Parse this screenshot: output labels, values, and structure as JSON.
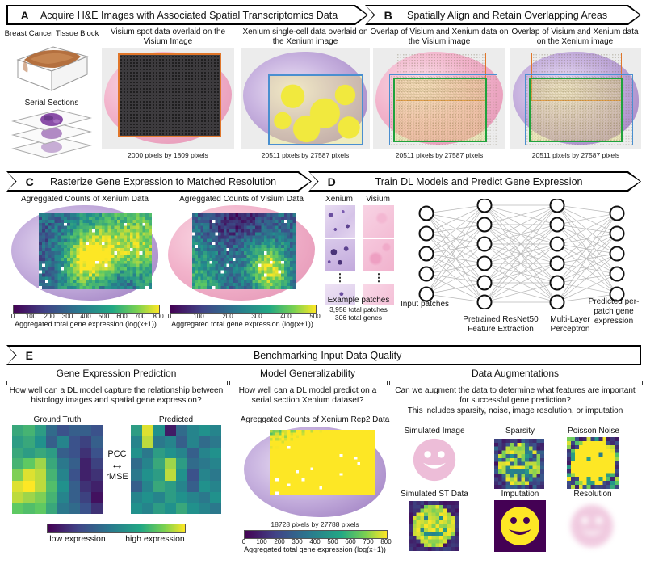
{
  "panelA": {
    "letter": "A",
    "title": "Acquire H&E Images with Associated Spatial Transcriptomics Data",
    "tissue_block_label": "Breast Cancer Tissue Block",
    "serial_sections_label": "Serial Sections",
    "visium_label": "Visium spot data overlaid on the Visium Image",
    "xenium_label": "Xenium single-cell data overlaid on the Xenium image",
    "visium_caption": "2000 pixels by 1809 pixels",
    "xenium_caption": "20511 pixels by 27587 pixels"
  },
  "panelB": {
    "letter": "B",
    "title": "Spatially Align and Retain Overlapping Areas",
    "visium_label": "Overlap of Visium and Xenium data on the Visium image",
    "xenium_label": "Overlap of Visium and Xenium data on the Xenium image",
    "visium_caption": "20511 pixels by 27587 pixels",
    "xenium_caption": "20511 pixels by 27587 pixels"
  },
  "panelC": {
    "letter": "C",
    "title": "Rasterize Gene Expression to Matched Resolution",
    "xenium_label": "Agreggated Counts of Xenium Data",
    "visium_label": "Agreggated Counts of Visium Data",
    "xenium_colorbar": {
      "ticks": [
        0,
        100,
        200,
        300,
        400,
        500,
        600,
        700,
        800
      ],
      "label": "Aggregated total gene expression (log(x+1))"
    },
    "visium_colorbar": {
      "ticks": [
        0,
        100,
        200,
        300,
        400,
        500
      ],
      "label": "Aggregated total gene expression (log(x+1))"
    }
  },
  "panelD": {
    "letter": "D",
    "title": "Train DL Models and Predict Gene Expression",
    "xenium_col_label": "Xenium",
    "visium_col_label": "Visium",
    "dots_icon": "⋮",
    "example_patches_label": "Example patches",
    "patch_count": "3,958 total patches",
    "gene_count": "306 total genes",
    "input_label": "Input patches",
    "resnet_label": "Pretrained ResNet50 Feature Extraction",
    "mlp_label": "Multi-Layer Perceptron",
    "output_label": "Predicted per-patch gene expression",
    "network_layers": [
      5,
      6,
      6,
      5
    ]
  },
  "panelE": {
    "letter": "E",
    "title": "Benchmarking Input Data Quality",
    "sections": [
      {
        "title": "Gene Expression Prediction",
        "question": "How well can a DL model capture the relationship between histology images and spatial gene expression?",
        "ground_truth_label": "Ground Truth",
        "predicted_label": "Predicted",
        "metric_top": "PCC",
        "metric_arrow_icon": "↔",
        "metric_bottom": "rMSE",
        "colorbar_low": "low expression",
        "colorbar_high": "high expression",
        "ground_truth_grid": [
          [
            0.6,
            0.65,
            0.55,
            0.35,
            0.25,
            0.3,
            0.3,
            0.25
          ],
          [
            0.55,
            0.6,
            0.5,
            0.3,
            0.45,
            0.25,
            0.2,
            0.3
          ],
          [
            0.6,
            0.55,
            0.6,
            0.55,
            0.3,
            0.25,
            0.15,
            0.25
          ],
          [
            0.65,
            0.75,
            0.85,
            0.6,
            0.4,
            0.3,
            0.1,
            0.2
          ],
          [
            0.8,
            0.95,
            0.9,
            0.65,
            0.45,
            0.25,
            0.1,
            0.15
          ],
          [
            0.95,
            1.0,
            0.9,
            0.7,
            0.5,
            0.3,
            0.15,
            0.1
          ],
          [
            0.9,
            0.85,
            0.8,
            0.65,
            0.45,
            0.3,
            0.2,
            0.05
          ],
          [
            0.75,
            0.7,
            0.75,
            0.6,
            0.4,
            0.35,
            0.25,
            0.15
          ]
        ],
        "predicted_grid": [
          [
            0.55,
            0.95,
            0.5,
            0.08,
            0.35,
            0.45,
            0.5,
            0.45
          ],
          [
            0.45,
            0.9,
            0.4,
            0.45,
            0.3,
            0.45,
            0.35,
            0.4
          ],
          [
            0.5,
            0.4,
            0.55,
            0.5,
            0.45,
            0.3,
            0.45,
            0.5
          ],
          [
            0.35,
            0.45,
            0.6,
            0.85,
            0.55,
            0.35,
            0.4,
            0.45
          ],
          [
            0.4,
            0.5,
            0.55,
            0.9,
            0.5,
            0.25,
            0.45,
            0.4
          ],
          [
            0.3,
            0.45,
            0.6,
            0.55,
            0.45,
            0.3,
            0.5,
            0.45
          ],
          [
            0.45,
            0.5,
            0.45,
            0.55,
            0.5,
            0.45,
            0.4,
            0.5
          ],
          [
            0.5,
            0.45,
            0.55,
            0.5,
            0.6,
            0.5,
            0.45,
            0.4
          ]
        ]
      },
      {
        "title": "Model Generalizability",
        "question": "How well can a DL model predict on a serial section Xenium dataset?",
        "image_label": "Agreggated Counts of Xenium Rep2 Data",
        "caption": "18728 pixels by 27788 pixels",
        "colorbar": {
          "ticks": [
            0,
            100,
            200,
            300,
            400,
            500,
            600,
            700,
            800
          ],
          "label": "Aggregated total gene expression (log(x+1))"
        }
      },
      {
        "title": "Data Augmentations",
        "question": "Can we augment the data to determine what features are important for successful gene prediction?",
        "note": "This includes sparsity, noise, image resolution, or imputation",
        "items": [
          "Simulated Image",
          "Sparsity",
          "Poisson Noise",
          "Simulated ST Data",
          "Imputation",
          "Resolution"
        ]
      }
    ]
  },
  "colors": {
    "viridis_low": "#440154",
    "viridis_high": "#fde725",
    "orange_box": "#e0762a",
    "blue_box": "#4a8fd0",
    "green_box": "#1fa23c",
    "pink_tissue": "#f2b3cb",
    "purple_tissue": "#b99ed3"
  }
}
